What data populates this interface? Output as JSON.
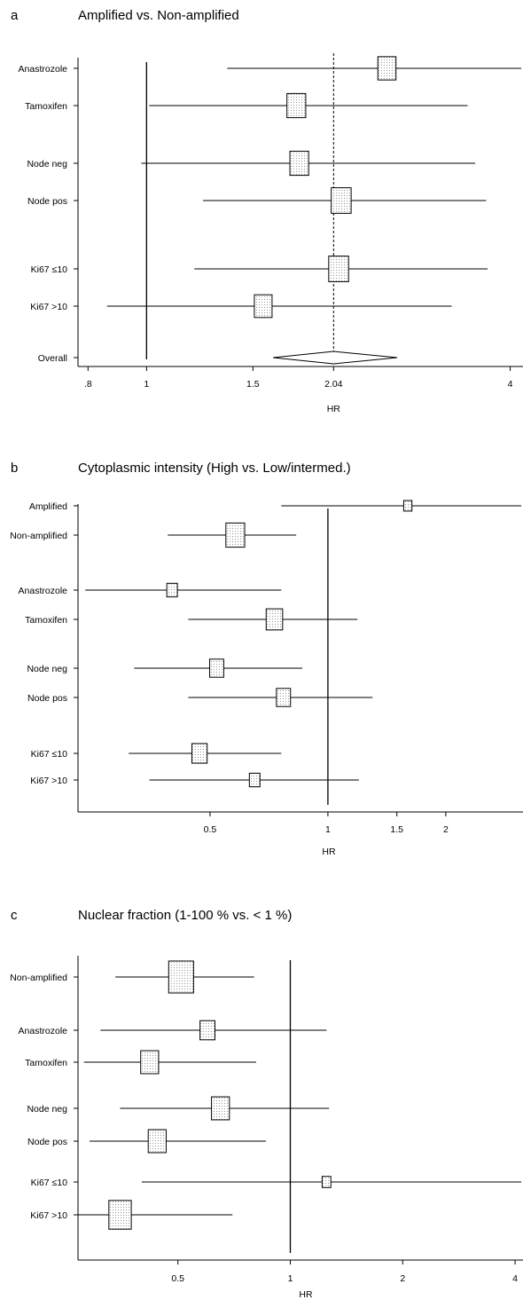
{
  "chart_data": [
    {
      "type": "forest",
      "letter": "a",
      "title": "Amplified vs. Non-amplified",
      "xlabel": "HR",
      "scale": "log",
      "xlim": [
        0.77,
        4.2
      ],
      "ticks": [
        {
          "value": 0.8,
          "label": ".8"
        },
        {
          "value": 1,
          "label": "1"
        },
        {
          "value": 1.5,
          "label": "1.5"
        },
        {
          "value": 2.04,
          "label": "2.04"
        },
        {
          "value": 4,
          "label": "4"
        }
      ],
      "reference_line": 1,
      "overall_line": 2.04,
      "rows": [
        {
          "label": "Anastrozole",
          "hr": 2.5,
          "lower": 1.36,
          "upper": 4.2,
          "weight": 0.82
        },
        {
          "label": "Tamoxifen",
          "hr": 1.77,
          "lower": 1.01,
          "upper": 3.4,
          "weight": 0.85
        },
        {
          "label": "Node neg",
          "hr": 1.79,
          "lower": 0.98,
          "upper": 3.5,
          "weight": 0.85
        },
        {
          "label": "Node pos",
          "hr": 2.1,
          "lower": 1.24,
          "upper": 3.65,
          "weight": 0.9
        },
        {
          "label": "Ki67 ≤10",
          "hr": 2.08,
          "lower": 1.2,
          "upper": 3.67,
          "weight": 0.9
        },
        {
          "label": "Ki67 >10",
          "hr": 1.56,
          "lower": 0.86,
          "upper": 3.2,
          "weight": 0.8
        },
        {
          "label": "Overall",
          "hr": 2.04,
          "lower": 1.62,
          "upper": 2.6,
          "diamond": true
        }
      ]
    },
    {
      "type": "forest",
      "letter": "b",
      "title": "Cytoplasmic intensity (High vs. Low/intermed.)",
      "xlabel": "HR",
      "scale": "log",
      "xlim": [
        0.23,
        3.15
      ],
      "ticks": [
        {
          "value": 0.5,
          "label": "0.5"
        },
        {
          "value": 1,
          "label": "1"
        },
        {
          "value": 1.5,
          "label": "1.5"
        },
        {
          "value": 2,
          "label": "2"
        }
      ],
      "reference_line": 1,
      "rows": [
        {
          "label": "Amplified",
          "hr": 1.6,
          "lower": 0.76,
          "upper": 3.15,
          "weight": 0.35
        },
        {
          "label": "Non-amplified",
          "hr": 0.58,
          "lower": 0.39,
          "upper": 0.83,
          "weight": 0.8
        },
        {
          "label": "Anastrozole",
          "hr": 0.4,
          "lower": 0.24,
          "upper": 0.76,
          "weight": 0.45
        },
        {
          "label": "Tamoxifen",
          "hr": 0.73,
          "lower": 0.44,
          "upper": 1.19,
          "weight": 0.7
        },
        {
          "label": "Node neg",
          "hr": 0.52,
          "lower": 0.32,
          "upper": 0.86,
          "weight": 0.6
        },
        {
          "label": "Node pos",
          "hr": 0.77,
          "lower": 0.44,
          "upper": 1.3,
          "weight": 0.6
        },
        {
          "label": "Ki67 ≤10",
          "hr": 0.47,
          "lower": 0.31,
          "upper": 0.76,
          "weight": 0.65
        },
        {
          "label": "Ki67 >10",
          "hr": 0.65,
          "lower": 0.35,
          "upper": 1.2,
          "weight": 0.45
        }
      ]
    },
    {
      "type": "forest",
      "letter": "c",
      "title": "Nuclear fraction (1-100 % vs. < 1 %)",
      "xlabel": "HR",
      "scale": "log",
      "xlim": [
        0.27,
        4.2
      ],
      "ticks": [
        {
          "value": 0.5,
          "label": "0.5"
        },
        {
          "value": 1,
          "label": "1"
        },
        {
          "value": 2,
          "label": "2"
        },
        {
          "value": 4,
          "label": "4"
        }
      ],
      "reference_line": 1,
      "rows": [
        {
          "label": "Non-amplified",
          "hr": 0.51,
          "lower": 0.34,
          "upper": 0.8,
          "weight": 1.0
        },
        {
          "label": "Anastrozole",
          "hr": 0.6,
          "lower": 0.31,
          "upper": 1.25,
          "weight": 0.6
        },
        {
          "label": "Tamoxifen",
          "hr": 0.42,
          "lower": 0.28,
          "upper": 0.81,
          "weight": 0.72
        },
        {
          "label": "Node neg",
          "hr": 0.65,
          "lower": 0.35,
          "upper": 1.27,
          "weight": 0.72
        },
        {
          "label": "Node pos",
          "hr": 0.44,
          "lower": 0.29,
          "upper": 0.86,
          "weight": 0.72
        },
        {
          "label": "Ki67 ≤10",
          "hr": 1.25,
          "lower": 0.4,
          "upper": 4.2,
          "weight": 0.35
        },
        {
          "label": "Ki67 >10",
          "hr": 0.35,
          "lower": 0.27,
          "upper": 0.7,
          "weight": 0.9
        }
      ]
    }
  ]
}
